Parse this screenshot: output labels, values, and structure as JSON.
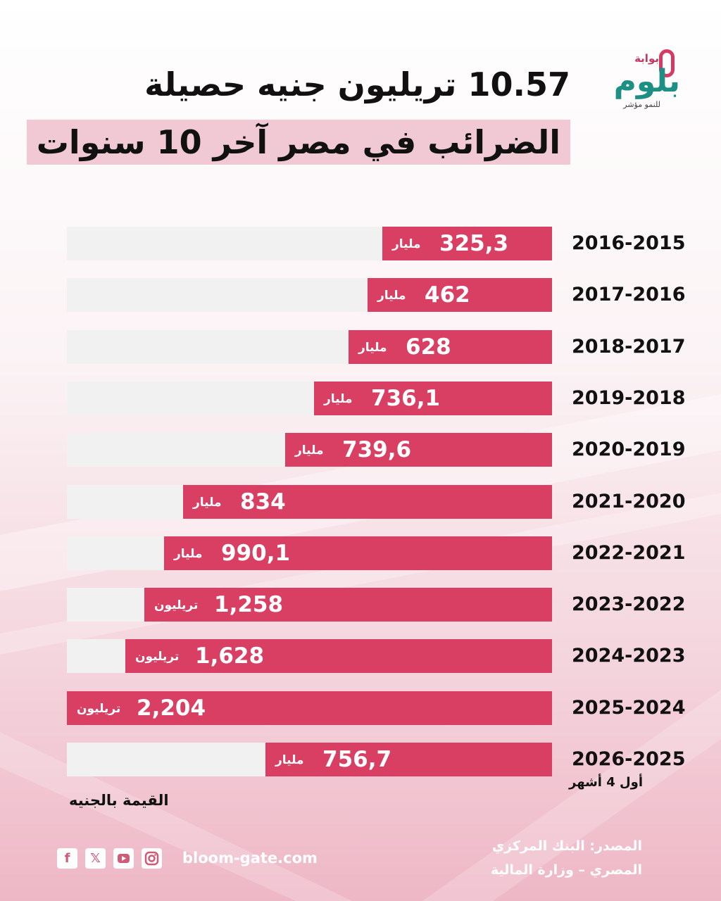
{
  "header": {
    "title_line1": "10.57 تريليون جنيه حصيلة",
    "title_line2": "الضرائب في مصر آخر 10 سنوات"
  },
  "logo": {
    "small_text": "بوابة",
    "brand": "بلوم",
    "tagline": "للنمو مؤشر"
  },
  "chart_data": {
    "type": "bar",
    "orientation": "horizontal",
    "categories": [
      "2016-2015",
      "2017-2016",
      "2018-2017",
      "2019-2018",
      "2020-2019",
      "2021-2020",
      "2022-2021",
      "2023-2022",
      "2024-2023",
      "2025-2024",
      "2026-2025"
    ],
    "values_label": [
      "325,3",
      "462",
      "628",
      "736,1",
      "739,6",
      "834",
      "990,1",
      "1,258",
      "1,628",
      "2,204",
      "756,7"
    ],
    "units": [
      "مليار",
      "مليار",
      "مليار",
      "مليار",
      "مليار",
      "مليار",
      "مليار",
      "تريليون",
      "تريليون",
      "تريليون",
      "مليار"
    ],
    "values_billion": [
      325.3,
      462,
      628,
      736.1,
      739.6,
      834,
      990.1,
      1258,
      1628,
      2204,
      756.7
    ],
    "bar_fraction": [
      0.35,
      0.38,
      0.42,
      0.49,
      0.55,
      0.76,
      0.8,
      0.84,
      0.88,
      1.0,
      0.59
    ],
    "colors": {
      "bar": "#d93e63",
      "track": "#f1f1f1"
    },
    "notes": [
      "أول 4 أشهر"
    ],
    "unit_label": "القيمة بالجنيه"
  },
  "footer": {
    "source_line1": "المصدر: البنك المركزي",
    "source_line2": "المصري – وزارة المالية",
    "website": "bloom-gate.com",
    "social_icons": [
      "facebook-icon",
      "x-icon",
      "youtube-icon",
      "instagram-icon"
    ]
  }
}
